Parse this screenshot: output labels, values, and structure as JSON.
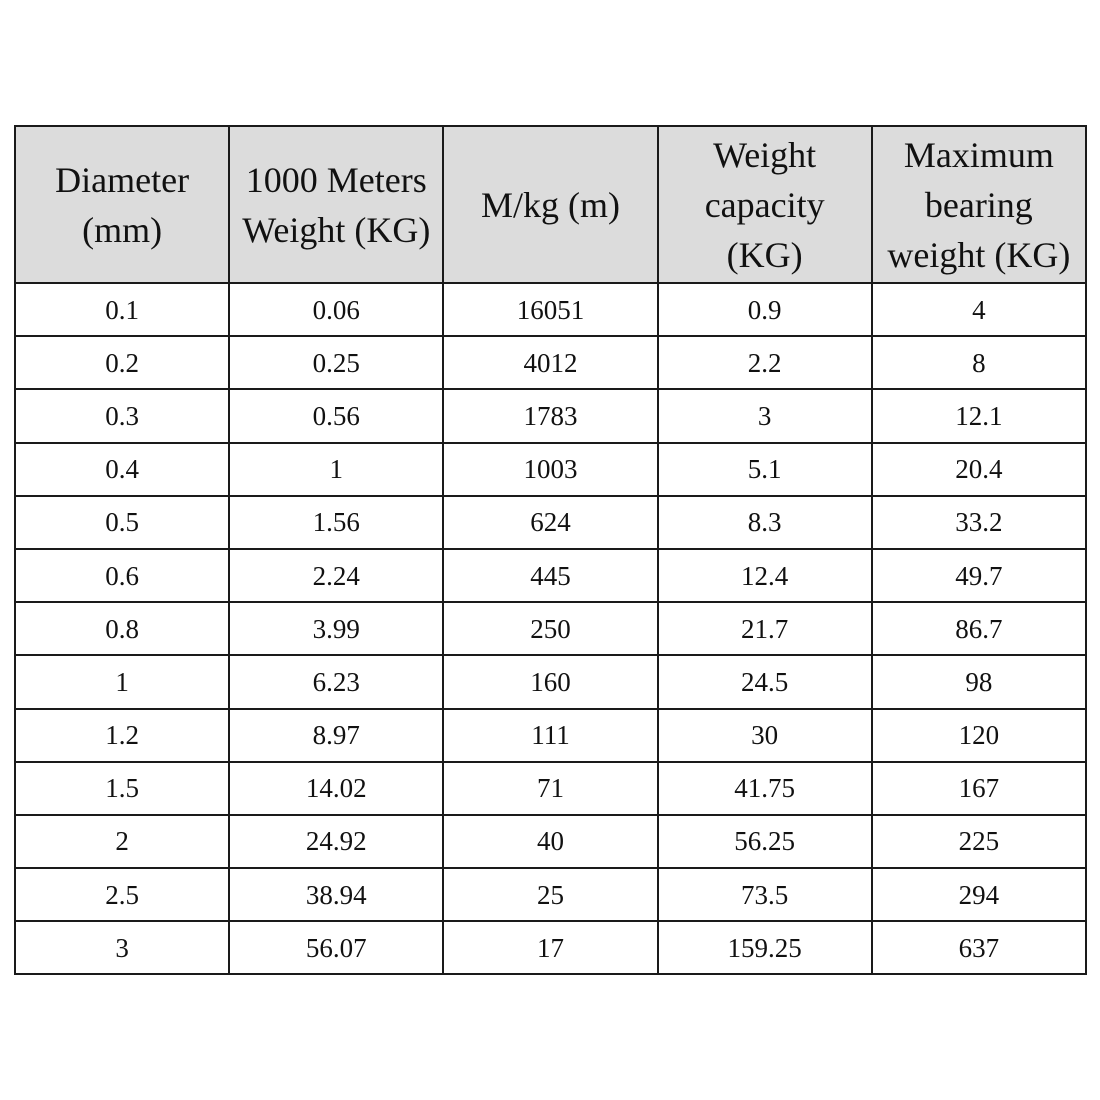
{
  "table": {
    "headers": [
      [
        "Diameter",
        "(mm)"
      ],
      [
        "1000 Meters",
        "Weight (KG)"
      ],
      [
        "M/kg (m)"
      ],
      [
        "Weight",
        "capacity",
        "(KG)"
      ],
      [
        "Maximum",
        "bearing",
        "weight (KG)"
      ]
    ],
    "rows": [
      [
        "0.1",
        "0.06",
        "16051",
        "0.9",
        "4"
      ],
      [
        "0.2",
        "0.25",
        "4012",
        "2.2",
        "8"
      ],
      [
        "0.3",
        "0.56",
        "1783",
        "3",
        "12.1"
      ],
      [
        "0.4",
        "1",
        "1003",
        "5.1",
        "20.4"
      ],
      [
        "0.5",
        "1.56",
        "624",
        "8.3",
        "33.2"
      ],
      [
        "0.6",
        "2.24",
        "445",
        "12.4",
        "49.7"
      ],
      [
        "0.8",
        "3.99",
        "250",
        "21.7",
        "86.7"
      ],
      [
        "1",
        "6.23",
        "160",
        "24.5",
        "98"
      ],
      [
        "1.2",
        "8.97",
        "111",
        "30",
        "120"
      ],
      [
        "1.5",
        "14.02",
        "71",
        "41.75",
        "167"
      ],
      [
        "2",
        "24.92",
        "40",
        "56.25",
        "225"
      ],
      [
        "2.5",
        "38.94",
        "25",
        "73.5",
        "294"
      ],
      [
        "3",
        "56.07",
        "17",
        "159.25",
        "637"
      ]
    ]
  }
}
